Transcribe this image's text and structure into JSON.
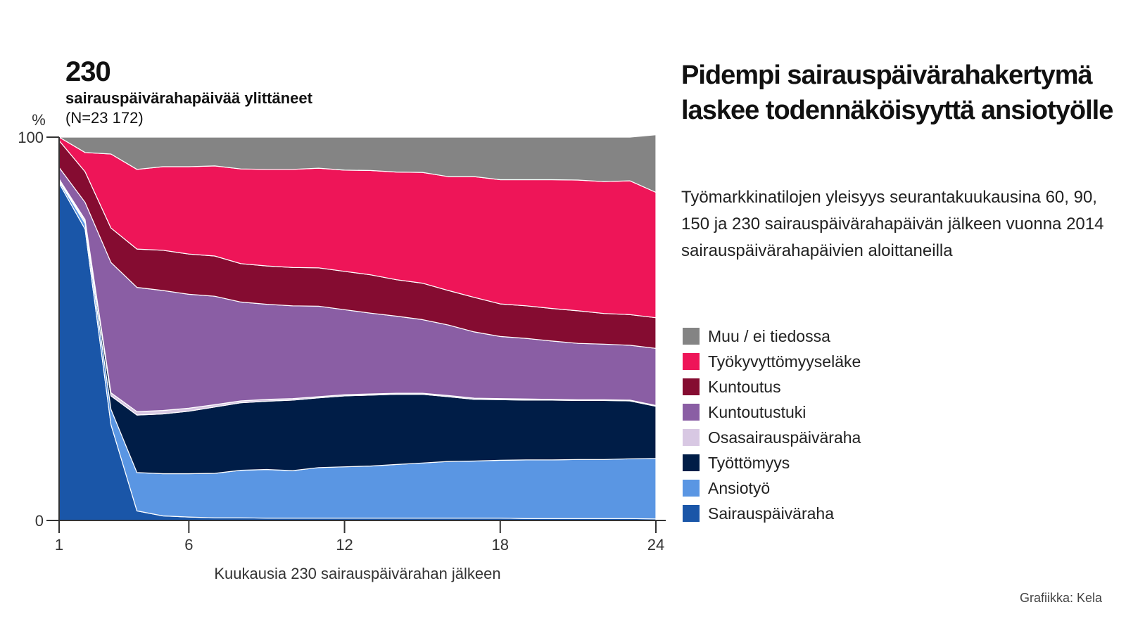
{
  "chart_data": {
    "type": "area",
    "stacked": true,
    "title": "230",
    "subtitle": "sairauspäivärahapäivää ylittäneet",
    "note": "(N=23 172)",
    "ylabel": "%",
    "xlabel": "Kuukausia 230 sairauspäivärahan jälkeen",
    "ylim": [
      0,
      100
    ],
    "xlim": [
      1,
      24
    ],
    "x_ticks": [
      1,
      6,
      12,
      18,
      24
    ],
    "y_ticks": [
      0,
      100
    ],
    "grid": false,
    "legend_position": "right",
    "x": [
      1,
      2,
      3,
      4,
      5,
      6,
      7,
      8,
      9,
      10,
      11,
      12,
      13,
      14,
      15,
      16,
      17,
      18,
      19,
      20,
      21,
      22,
      23,
      24
    ],
    "series": [
      {
        "name": "Sairauspäiväraha",
        "color": "#1a56a8",
        "values": [
          88,
          76,
          25,
          2.5,
          1.2,
          0.9,
          0.7,
          0.7,
          0.6,
          0.6,
          0.6,
          0.6,
          0.6,
          0.6,
          0.6,
          0.6,
          0.6,
          0.6,
          0.5,
          0.5,
          0.5,
          0.5,
          0.5,
          0.4
        ]
      },
      {
        "name": "Ansiotyö",
        "color": "#5a96e3",
        "values": [
          0.5,
          1.5,
          4,
          10,
          11,
          11.3,
          11.6,
          12.4,
          12.7,
          12.4,
          13.2,
          13.4,
          13.6,
          14,
          14.4,
          14.8,
          14.9,
          15.1,
          15.3,
          15.3,
          15.4,
          15.4,
          15.6,
          15.8
        ]
      },
      {
        "name": "Työttömyys",
        "color": "#001d47",
        "values": [
          0.3,
          0.5,
          3.5,
          15,
          15.6,
          16.3,
          17.3,
          17.6,
          17.8,
          18.4,
          18.2,
          18.5,
          18.5,
          18.3,
          17.9,
          16.9,
          16.1,
          15.8,
          15.6,
          15.6,
          15.4,
          15.4,
          15.1,
          13.6
        ]
      },
      {
        "name": "Osasairauspäiväraha",
        "color": "#d8c8e3",
        "values": [
          0.3,
          0.5,
          0.8,
          0.9,
          0.9,
          0.8,
          0.6,
          0.5,
          0.5,
          0.4,
          0.3,
          0.3,
          0.3,
          0.3,
          0.3,
          0.3,
          0.3,
          0.3,
          0.3,
          0.2,
          0.2,
          0.2,
          0.2,
          0.2
        ]
      },
      {
        "name": "Kuntoutustuki",
        "color": "#8a5ea4",
        "values": [
          3,
          4.5,
          34,
          32.4,
          31.3,
          29.7,
          28.3,
          25.8,
          24.8,
          24.2,
          23.6,
          22.2,
          21.1,
          20.1,
          19.2,
          18.4,
          17.3,
          16.2,
          15.8,
          15.2,
          14.7,
          14.5,
          14.3,
          14.9
        ]
      },
      {
        "name": "Kuntoutus",
        "color": "#850c31",
        "values": [
          7,
          8,
          9,
          10,
          10.5,
          10.5,
          10.5,
          10,
          10,
          10,
          10,
          10,
          10,
          9.5,
          9.5,
          9,
          9,
          8.5,
          8.5,
          8.5,
          8.5,
          8,
          8,
          8
        ]
      },
      {
        "name": "Työkyvyttömyyseläke",
        "color": "#ee1558",
        "values": [
          0.9,
          5,
          19.3,
          20.8,
          21.8,
          22.8,
          23.5,
          24.7,
          25.2,
          25.6,
          26,
          26.4,
          27.2,
          28.1,
          28.9,
          29.7,
          31.5,
          32.4,
          32.9,
          33.6,
          34.1,
          34.4,
          34.9,
          32.7
        ]
      },
      {
        "name": "Muu / ei tiedossa",
        "color": "#848484",
        "values": [
          0,
          4,
          4.4,
          8.4,
          7.7,
          7.7,
          7.5,
          8.3,
          8.4,
          8.4,
          8.1,
          8.6,
          8.7,
          9.1,
          9.2,
          10.3,
          10.3,
          11.1,
          11.1,
          11.1,
          11.2,
          11.6,
          11.4,
          15
        ]
      }
    ]
  },
  "side": {
    "title": "Pidempi sairauspäivärahakertymä laskee todennäköisyyttä ansiotyölle",
    "text": "Työmarkkinatilojen yleisyys seurantakuukausina 60, 90, 150 ja 230 sairauspäivärahapäivän jälkeen vuonna 2014 sairauspäivärahapäivien aloittaneilla"
  },
  "credit": "Grafiikka: Kela"
}
